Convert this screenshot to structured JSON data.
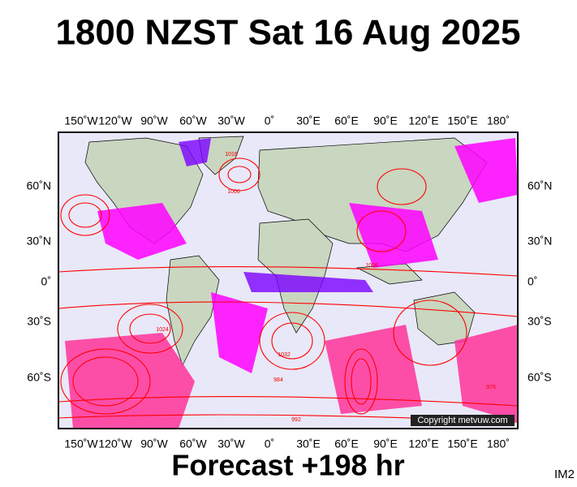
{
  "title": "1800 NZST Sat 16 Aug 2025",
  "footer": "Forecast +198 hr",
  "copyright": "Copyright metvuw.com",
  "image_id": "IM2",
  "longitude_labels": [
    "150˚W",
    "120˚W",
    "90˚W",
    "60˚W",
    "30˚W",
    "0˚",
    "30˚E",
    "60˚E",
    "90˚E",
    "120˚E",
    "150˚E",
    "180˚"
  ],
  "latitude_labels": [
    "60˚N",
    "30˚N",
    "0˚",
    "30˚S",
    "60˚S"
  ],
  "contour_labels": [
    "1016",
    "1008",
    "1000",
    "1024",
    "1032",
    "984",
    "976",
    "992"
  ]
}
